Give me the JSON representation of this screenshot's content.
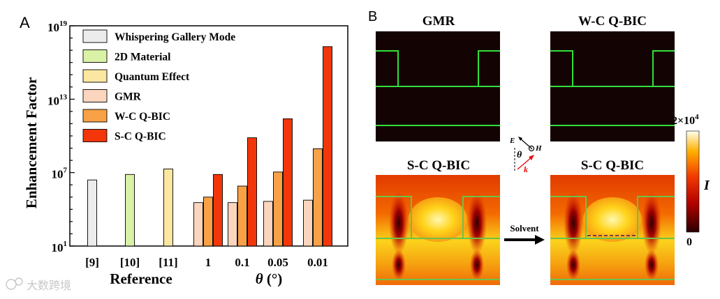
{
  "panel_a_label": "A",
  "panel_b_label": "B",
  "chart_data": {
    "type": "bar",
    "ylabel": "Enhancement Factor",
    "yscale": "log",
    "ylim_exp": [
      1,
      19
    ],
    "yticks": [
      {
        "base": "10",
        "exp": "1",
        "value": 1
      },
      {
        "base": "10",
        "exp": "7",
        "value": 7
      },
      {
        "base": "10",
        "exp": "13",
        "value": 13
      },
      {
        "base": "10",
        "exp": "19",
        "value": 19
      }
    ],
    "legend": [
      {
        "label": "Whispering Gallery Mode",
        "color": "#ececec"
      },
      {
        "label": "2D Material",
        "color": "#d9f2a6"
      },
      {
        "label": "Quantum Effect",
        "color": "#fbe7a1"
      },
      {
        "label": "GMR",
        "color": "#fbd5bd"
      },
      {
        "label": "W-C Q-BIC",
        "color": "#f9a146"
      },
      {
        "label": "S-C  Q-BIC",
        "color": "#f2360a"
      }
    ],
    "xgroups": [
      {
        "label": "[9]",
        "bars": [
          {
            "series": 0,
            "log10": 6.4
          }
        ]
      },
      {
        "label": "[10]",
        "bars": [
          {
            "series": 1,
            "log10": 6.85
          }
        ]
      },
      {
        "label": "[11]",
        "bars": [
          {
            "series": 2,
            "log10": 7.3
          }
        ]
      },
      {
        "label": "1",
        "bars": [
          {
            "series": 3,
            "log10": 4.55
          },
          {
            "series": 4,
            "log10": 5.0
          },
          {
            "series": 5,
            "log10": 6.85
          }
        ]
      },
      {
        "label": "0.1",
        "bars": [
          {
            "series": 3,
            "log10": 4.55
          },
          {
            "series": 4,
            "log10": 5.9
          },
          {
            "series": 5,
            "log10": 9.85
          }
        ]
      },
      {
        "label": "0.05",
        "bars": [
          {
            "series": 3,
            "log10": 4.65
          },
          {
            "series": 4,
            "log10": 7.05
          },
          {
            "series": 5,
            "log10": 11.4
          }
        ]
      },
      {
        "label": "0.01",
        "bars": [
          {
            "series": 3,
            "log10": 4.75
          },
          {
            "series": 4,
            "log10": 8.95
          },
          {
            "series": 5,
            "log10": 17.3
          }
        ]
      }
    ],
    "xlabel_reference": "Reference",
    "xlabel_theta_symbol": "θ",
    "xlabel_theta_unit": " (°)"
  },
  "panel_b": {
    "title_gmr": "GMR",
    "title_wc": "W-C Q-BIC",
    "title_sc_left": "S-C Q-BIC",
    "title_sc_right": "S-C Q-BIC",
    "arrow_label": "Solvent",
    "colorbar_max_base": "2×10",
    "colorbar_max_exp": "4",
    "colorbar_min": "0",
    "colorbar_var": "I",
    "inset_e": "E",
    "inset_h": "H",
    "inset_theta": "θ",
    "inset_k": "k"
  },
  "watermark": "大数跨境"
}
